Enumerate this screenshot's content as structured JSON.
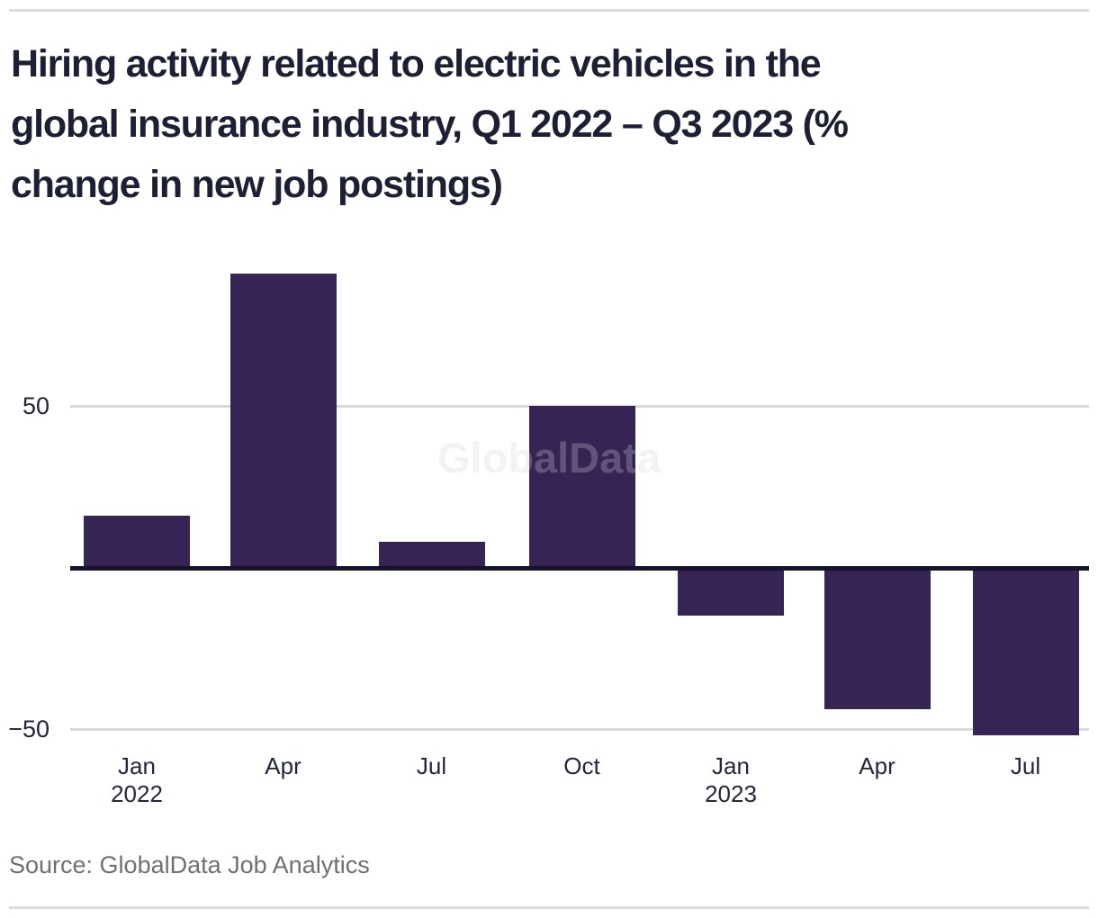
{
  "header": {
    "title": "Hiring activity related to electric vehicles in the global insurance industry, Q1 2022 – Q3 2023 (% change in new job postings)",
    "title_lines": [
      "Hiring activity related to electric vehicles in the",
      "global insurance industry, Q1 2022 – Q3 2023 (%",
      "change in new job postings)"
    ]
  },
  "chart": {
    "watermark": "GlobalData",
    "y_ticks": [
      {
        "label": "50",
        "value": 50
      },
      {
        "label": "−50",
        "value": -50
      }
    ],
    "x_ticks": [
      {
        "label": "Jan",
        "sub": "2022"
      },
      {
        "label": "Apr",
        "sub": ""
      },
      {
        "label": "Jul",
        "sub": ""
      },
      {
        "label": "Oct",
        "sub": ""
      },
      {
        "label": "Jan",
        "sub": "2023"
      },
      {
        "label": "Apr",
        "sub": ""
      },
      {
        "label": "Jul",
        "sub": ""
      }
    ]
  },
  "chart_data": {
    "type": "bar",
    "title": "Hiring activity related to electric vehicles in the global insurance industry, Q1 2022 – Q3 2023 (% change in new job postings)",
    "categories": [
      "Jan 2022",
      "Apr 2022",
      "Jul 2022",
      "Oct 2022",
      "Jan 2023",
      "Apr 2023",
      "Jul 2023"
    ],
    "values": [
      16,
      91,
      8,
      50,
      -15,
      -44,
      -52
    ],
    "xlabel": "",
    "ylabel": "% change in new job postings",
    "ylim": [
      -60,
      100
    ],
    "grid_y_values": [
      50,
      -50
    ],
    "zero_baseline": true,
    "legend": "none",
    "bar_color": "#362554"
  },
  "footer": {
    "source": "Source: GlobalData Job Analytics"
  },
  "colors": {
    "bar": "#362554",
    "title_text": "#1d2035",
    "axis_text": "#24263e",
    "gridline": "#d9d9d9",
    "zero_line": "#13142c",
    "source_text": "#707070",
    "watermark": "#f0f0f0",
    "rule": "#dcdcdc"
  }
}
